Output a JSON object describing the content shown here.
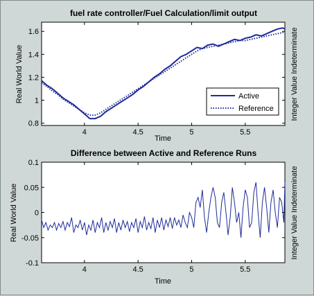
{
  "chart_data": [
    {
      "type": "line",
      "title": "fuel rate controller/Fuel  Calculation/limit output",
      "xlabel": "Time",
      "ylabel": "Real World Value",
      "ylabel_right": "Integer Value Indeterminate",
      "xlim": [
        3.6,
        5.87
      ],
      "ylim": [
        0.78,
        1.68
      ],
      "xticks": [
        4,
        4.5,
        5,
        5.5
      ],
      "xtick_labels": [
        "4",
        "4.5",
        "5",
        "5.5"
      ],
      "yticks": [
        0.8,
        1.0,
        1.2,
        1.4,
        1.6
      ],
      "ytick_labels": [
        "0.8",
        "1",
        "1.2",
        "1.4",
        "1.6"
      ],
      "grid": false,
      "legend_position": "lower-right",
      "series": [
        {
          "name": "Active",
          "style": "solid",
          "color": "#1c2a99",
          "x": [
            3.6,
            3.65,
            3.7,
            3.75,
            3.8,
            3.85,
            3.9,
            3.95,
            4.0,
            4.05,
            4.1,
            4.15,
            4.2,
            4.25,
            4.3,
            4.35,
            4.4,
            4.45,
            4.5,
            4.55,
            4.6,
            4.65,
            4.7,
            4.75,
            4.8,
            4.85,
            4.9,
            4.95,
            5.0,
            5.05,
            5.1,
            5.15,
            5.2,
            5.25,
            5.3,
            5.35,
            5.4,
            5.45,
            5.5,
            5.55,
            5.6,
            5.65,
            5.7,
            5.75,
            5.8,
            5.85,
            5.87
          ],
          "y": [
            1.17,
            1.13,
            1.1,
            1.06,
            1.02,
            0.99,
            0.96,
            0.92,
            0.88,
            0.84,
            0.84,
            0.86,
            0.9,
            0.93,
            0.96,
            0.99,
            1.02,
            1.05,
            1.09,
            1.12,
            1.16,
            1.2,
            1.23,
            1.27,
            1.3,
            1.34,
            1.38,
            1.4,
            1.43,
            1.46,
            1.45,
            1.48,
            1.49,
            1.47,
            1.49,
            1.51,
            1.53,
            1.52,
            1.54,
            1.55,
            1.57,
            1.56,
            1.58,
            1.6,
            1.62,
            1.63,
            1.62
          ]
        },
        {
          "name": "Reference",
          "style": "dotted",
          "color": "#1c2a99",
          "x": [
            3.6,
            3.65,
            3.7,
            3.75,
            3.8,
            3.85,
            3.9,
            3.95,
            4.0,
            4.05,
            4.1,
            4.15,
            4.2,
            4.25,
            4.3,
            4.35,
            4.4,
            4.45,
            4.5,
            4.55,
            4.6,
            4.65,
            4.7,
            4.75,
            4.8,
            4.85,
            4.9,
            4.95,
            5.0,
            5.05,
            5.1,
            5.15,
            5.2,
            5.25,
            5.3,
            5.35,
            5.4,
            5.45,
            5.5,
            5.55,
            5.6,
            5.65,
            5.7,
            5.75,
            5.8,
            5.85,
            5.87
          ],
          "y": [
            1.15,
            1.12,
            1.08,
            1.05,
            1.01,
            0.98,
            0.95,
            0.92,
            0.89,
            0.87,
            0.87,
            0.89,
            0.92,
            0.95,
            0.98,
            1.01,
            1.04,
            1.07,
            1.1,
            1.13,
            1.16,
            1.19,
            1.22,
            1.25,
            1.28,
            1.31,
            1.34,
            1.37,
            1.4,
            1.43,
            1.45,
            1.46,
            1.47,
            1.48,
            1.49,
            1.5,
            1.51,
            1.52,
            1.52,
            1.53,
            1.54,
            1.55,
            1.56,
            1.57,
            1.58,
            1.59,
            1.6
          ]
        }
      ]
    },
    {
      "type": "line",
      "title": "Difference between Active and Reference Runs",
      "xlabel": "Time",
      "ylabel": "Real World Value",
      "ylabel_right": "Integer Value Indeterminate",
      "xlim": [
        3.6,
        5.87
      ],
      "ylim": [
        -0.1,
        0.1
      ],
      "xticks": [
        4,
        4.5,
        5,
        5.5
      ],
      "xtick_labels": [
        "4",
        "4.5",
        "5",
        "5.5"
      ],
      "yticks": [
        -0.1,
        -0.05,
        0,
        0.05,
        0.1
      ],
      "ytick_labels": [
        "-0.1",
        "-0.05",
        "0",
        "0.05",
        "0.1"
      ],
      "grid": false,
      "series": [
        {
          "color": "#1c2a99",
          "x": [
            3.6,
            3.62,
            3.64,
            3.66,
            3.68,
            3.7,
            3.72,
            3.74,
            3.76,
            3.78,
            3.8,
            3.82,
            3.84,
            3.86,
            3.88,
            3.9,
            3.92,
            3.94,
            3.96,
            3.98,
            4.0,
            4.02,
            4.04,
            4.06,
            4.08,
            4.1,
            4.12,
            4.14,
            4.16,
            4.18,
            4.2,
            4.22,
            4.24,
            4.26,
            4.28,
            4.3,
            4.32,
            4.34,
            4.36,
            4.38,
            4.4,
            4.42,
            4.44,
            4.46,
            4.48,
            4.5,
            4.52,
            4.54,
            4.56,
            4.58,
            4.6,
            4.62,
            4.64,
            4.66,
            4.68,
            4.7,
            4.72,
            4.74,
            4.76,
            4.78,
            4.8,
            4.82,
            4.84,
            4.86,
            4.88,
            4.9,
            4.92,
            4.94,
            4.96,
            4.98,
            5.0,
            5.02,
            5.04,
            5.06,
            5.08,
            5.1,
            5.12,
            5.14,
            5.16,
            5.18,
            5.2,
            5.22,
            5.24,
            5.26,
            5.28,
            5.3,
            5.32,
            5.34,
            5.36,
            5.38,
            5.4,
            5.42,
            5.44,
            5.46,
            5.48,
            5.5,
            5.52,
            5.54,
            5.56,
            5.58,
            5.6,
            5.62,
            5.64,
            5.66,
            5.68,
            5.7,
            5.72,
            5.74,
            5.76,
            5.78,
            5.8,
            5.82,
            5.84,
            5.86,
            5.87
          ],
          "y": [
            -0.015,
            -0.03,
            -0.02,
            -0.035,
            -0.025,
            -0.03,
            -0.02,
            -0.035,
            -0.022,
            -0.03,
            -0.018,
            -0.035,
            -0.02,
            -0.028,
            -0.01,
            -0.04,
            -0.025,
            -0.03,
            -0.015,
            -0.035,
            -0.02,
            -0.045,
            -0.025,
            -0.035,
            -0.015,
            -0.04,
            -0.02,
            -0.03,
            -0.01,
            -0.04,
            -0.02,
            -0.035,
            -0.018,
            -0.03,
            -0.012,
            -0.04,
            -0.02,
            -0.035,
            -0.015,
            -0.03,
            -0.018,
            -0.038,
            -0.02,
            -0.03,
            -0.012,
            -0.04,
            -0.018,
            -0.03,
            -0.008,
            -0.035,
            -0.02,
            -0.032,
            -0.01,
            -0.04,
            -0.015,
            -0.03,
            -0.01,
            -0.035,
            -0.015,
            -0.028,
            -0.01,
            -0.032,
            -0.01,
            -0.025,
            -0.015,
            -0.03,
            -0.005,
            -0.02,
            -0.03,
            0.0,
            -0.01,
            -0.03,
            0.02,
            0.03,
            0.01,
            0.045,
            -0.01,
            -0.04,
            0.0,
            0.03,
            0.05,
            0.03,
            -0.02,
            -0.03,
            0.02,
            0.04,
            0.0,
            -0.045,
            -0.01,
            0.05,
            0.02,
            -0.02,
            0.0,
            -0.05,
            0.01,
            0.045,
            0.03,
            -0.03,
            -0.02,
            0.04,
            0.06,
            0.0,
            -0.05,
            0.02,
            0.05,
            0.01,
            -0.04,
            0.02,
            0.045,
            0.0,
            -0.03,
            0.03,
            0.02,
            -0.02,
            0.06
          ]
        }
      ]
    }
  ]
}
